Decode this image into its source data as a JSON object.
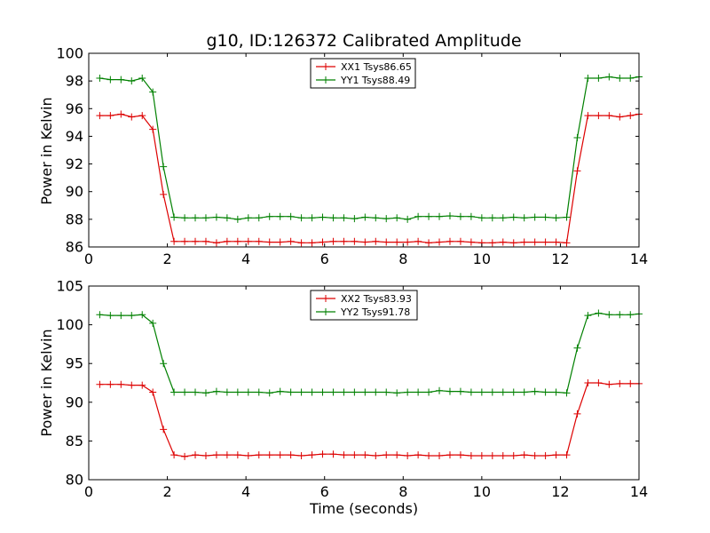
{
  "chart_data": [
    {
      "type": "line",
      "title": "g10, ID:126372 Calibrated Amplitude",
      "xlabel": "",
      "ylabel": "Power in Kelvin",
      "xlim": [
        0,
        14
      ],
      "ylim": [
        86,
        100
      ],
      "xticks": [
        "0",
        "2",
        "4",
        "6",
        "8",
        "10",
        "12",
        "14"
      ],
      "yticks": [
        "86",
        "88",
        "90",
        "92",
        "94",
        "96",
        "98",
        "100"
      ],
      "grid": false,
      "legend_position": "top-center",
      "x": [
        0.28,
        0.55,
        0.82,
        1.09,
        1.36,
        1.63,
        1.9,
        2.17,
        2.44,
        2.71,
        2.98,
        3.25,
        3.52,
        3.79,
        4.06,
        4.33,
        4.6,
        4.87,
        5.14,
        5.41,
        5.68,
        5.95,
        6.22,
        6.49,
        6.76,
        7.03,
        7.3,
        7.57,
        7.84,
        8.11,
        8.38,
        8.65,
        8.92,
        9.19,
        9.46,
        9.73,
        10.0,
        10.27,
        10.54,
        10.81,
        11.08,
        11.35,
        11.62,
        11.89,
        12.16,
        12.43,
        12.7,
        12.97,
        13.24,
        13.51,
        13.78,
        14.0
      ],
      "series": [
        {
          "name": "XX1 Tsys86.65",
          "color": "#dd0000",
          "values": [
            95.5,
            95.5,
            95.6,
            95.4,
            95.5,
            94.5,
            89.8,
            86.4,
            86.4,
            86.4,
            86.4,
            86.3,
            86.4,
            86.4,
            86.4,
            86.4,
            86.35,
            86.35,
            86.4,
            86.3,
            86.3,
            86.35,
            86.4,
            86.4,
            86.4,
            86.35,
            86.4,
            86.35,
            86.35,
            86.35,
            86.4,
            86.3,
            86.35,
            86.4,
            86.4,
            86.35,
            86.3,
            86.3,
            86.35,
            86.3,
            86.35,
            86.35,
            86.35,
            86.35,
            86.3,
            91.5,
            95.5,
            95.5,
            95.5,
            95.4,
            95.5,
            95.6
          ]
        },
        {
          "name": "YY1 Tsys88.49",
          "color": "#008000",
          "values": [
            98.2,
            98.1,
            98.1,
            98.0,
            98.2,
            97.2,
            91.8,
            88.15,
            88.1,
            88.1,
            88.1,
            88.15,
            88.1,
            88.0,
            88.1,
            88.1,
            88.2,
            88.2,
            88.2,
            88.1,
            88.1,
            88.15,
            88.1,
            88.1,
            88.05,
            88.15,
            88.1,
            88.05,
            88.1,
            88.0,
            88.2,
            88.2,
            88.2,
            88.25,
            88.2,
            88.2,
            88.1,
            88.1,
            88.1,
            88.15,
            88.1,
            88.15,
            88.15,
            88.1,
            88.15,
            93.9,
            98.2,
            98.2,
            98.3,
            98.2,
            98.2,
            98.3
          ]
        }
      ]
    },
    {
      "type": "line",
      "title": "",
      "xlabel": "Time (seconds)",
      "ylabel": "Power in Kelvin",
      "xlim": [
        0,
        14
      ],
      "ylim": [
        80,
        105
      ],
      "xticks": [
        "0",
        "2",
        "4",
        "6",
        "8",
        "10",
        "12",
        "14"
      ],
      "yticks": [
        "80",
        "85",
        "90",
        "95",
        "100",
        "105"
      ],
      "grid": false,
      "legend_position": "top-center",
      "x": [
        0.28,
        0.55,
        0.82,
        1.09,
        1.36,
        1.63,
        1.9,
        2.17,
        2.44,
        2.71,
        2.98,
        3.25,
        3.52,
        3.79,
        4.06,
        4.33,
        4.6,
        4.87,
        5.14,
        5.41,
        5.68,
        5.95,
        6.22,
        6.49,
        6.76,
        7.03,
        7.3,
        7.57,
        7.84,
        8.11,
        8.38,
        8.65,
        8.92,
        9.19,
        9.46,
        9.73,
        10.0,
        10.27,
        10.54,
        10.81,
        11.08,
        11.35,
        11.62,
        11.89,
        12.16,
        12.43,
        12.7,
        12.97,
        13.24,
        13.51,
        13.78,
        14.0
      ],
      "series": [
        {
          "name": "XX2 Tsys83.93",
          "color": "#dd0000",
          "values": [
            92.3,
            92.3,
            92.3,
            92.2,
            92.2,
            91.3,
            86.5,
            83.2,
            83.0,
            83.2,
            83.1,
            83.2,
            83.2,
            83.2,
            83.1,
            83.2,
            83.2,
            83.2,
            83.2,
            83.1,
            83.2,
            83.3,
            83.3,
            83.2,
            83.2,
            83.2,
            83.1,
            83.2,
            83.2,
            83.1,
            83.2,
            83.1,
            83.1,
            83.2,
            83.2,
            83.1,
            83.1,
            83.1,
            83.1,
            83.1,
            83.2,
            83.1,
            83.1,
            83.2,
            83.2,
            88.5,
            92.5,
            92.5,
            92.3,
            92.4,
            92.4,
            92.4
          ]
        },
        {
          "name": "YY2 Tsys91.78",
          "color": "#008000",
          "values": [
            101.3,
            101.2,
            101.2,
            101.2,
            101.3,
            100.2,
            95.0,
            91.3,
            91.3,
            91.3,
            91.2,
            91.4,
            91.3,
            91.3,
            91.3,
            91.3,
            91.2,
            91.4,
            91.3,
            91.3,
            91.3,
            91.3,
            91.3,
            91.3,
            91.3,
            91.3,
            91.3,
            91.3,
            91.2,
            91.3,
            91.3,
            91.3,
            91.5,
            91.4,
            91.4,
            91.3,
            91.3,
            91.3,
            91.3,
            91.3,
            91.3,
            91.4,
            91.3,
            91.3,
            91.2,
            97.0,
            101.2,
            101.5,
            101.3,
            101.3,
            101.3,
            101.4
          ]
        }
      ]
    }
  ]
}
